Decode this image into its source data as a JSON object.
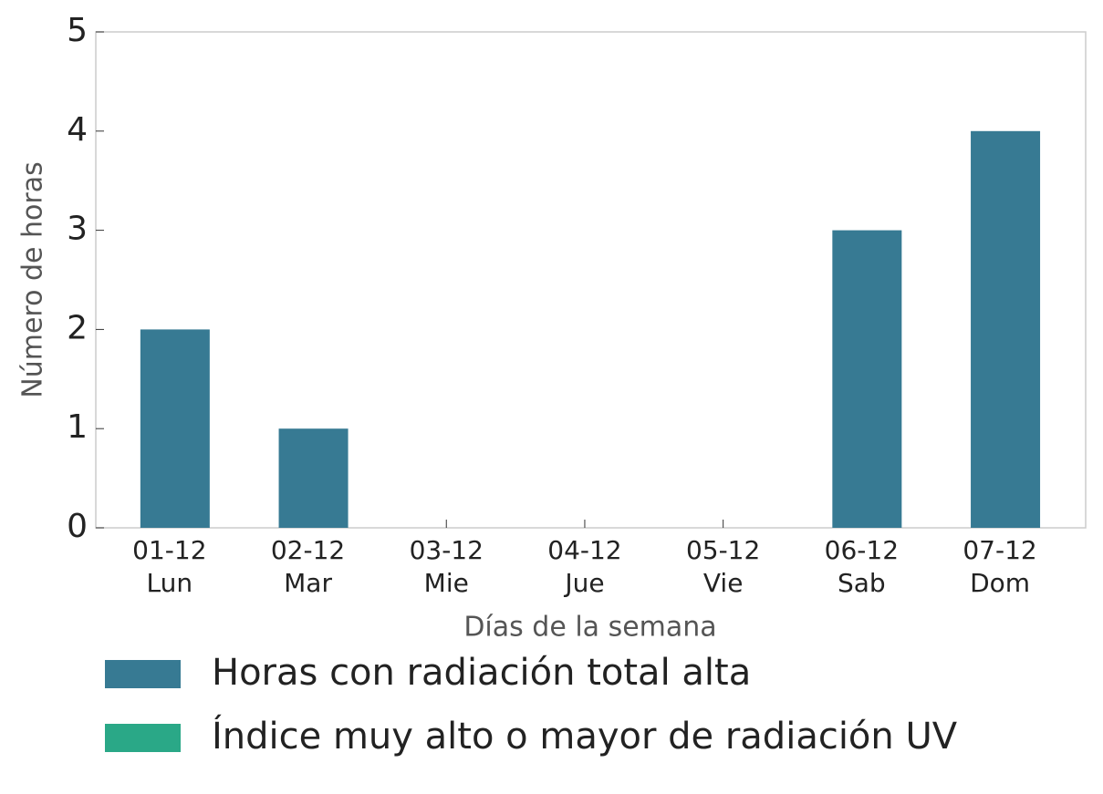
{
  "chart_data": {
    "type": "bar",
    "x_label": "Días de la semana",
    "y_label": "Número de horas",
    "categories": [
      "01-12\nLun",
      "02-12\nMar",
      "03-12\nMie",
      "04-12\nJue",
      "05-12\nVie",
      "06-12\nSab",
      "07-12\nDom"
    ],
    "series": [
      {
        "name": "Horas con radiación total alta",
        "color": "#377a93",
        "values": [
          2,
          1,
          0,
          0,
          0,
          3,
          4
        ]
      },
      {
        "name": "Índice muy alto o mayor de radiación UV",
        "color": "#2aa887",
        "values": [
          0,
          0,
          0,
          0,
          0,
          0,
          0
        ]
      }
    ],
    "ylim": [
      0,
      5
    ],
    "yticks": [
      0,
      1,
      2,
      3,
      4,
      5
    ],
    "grid": false
  }
}
